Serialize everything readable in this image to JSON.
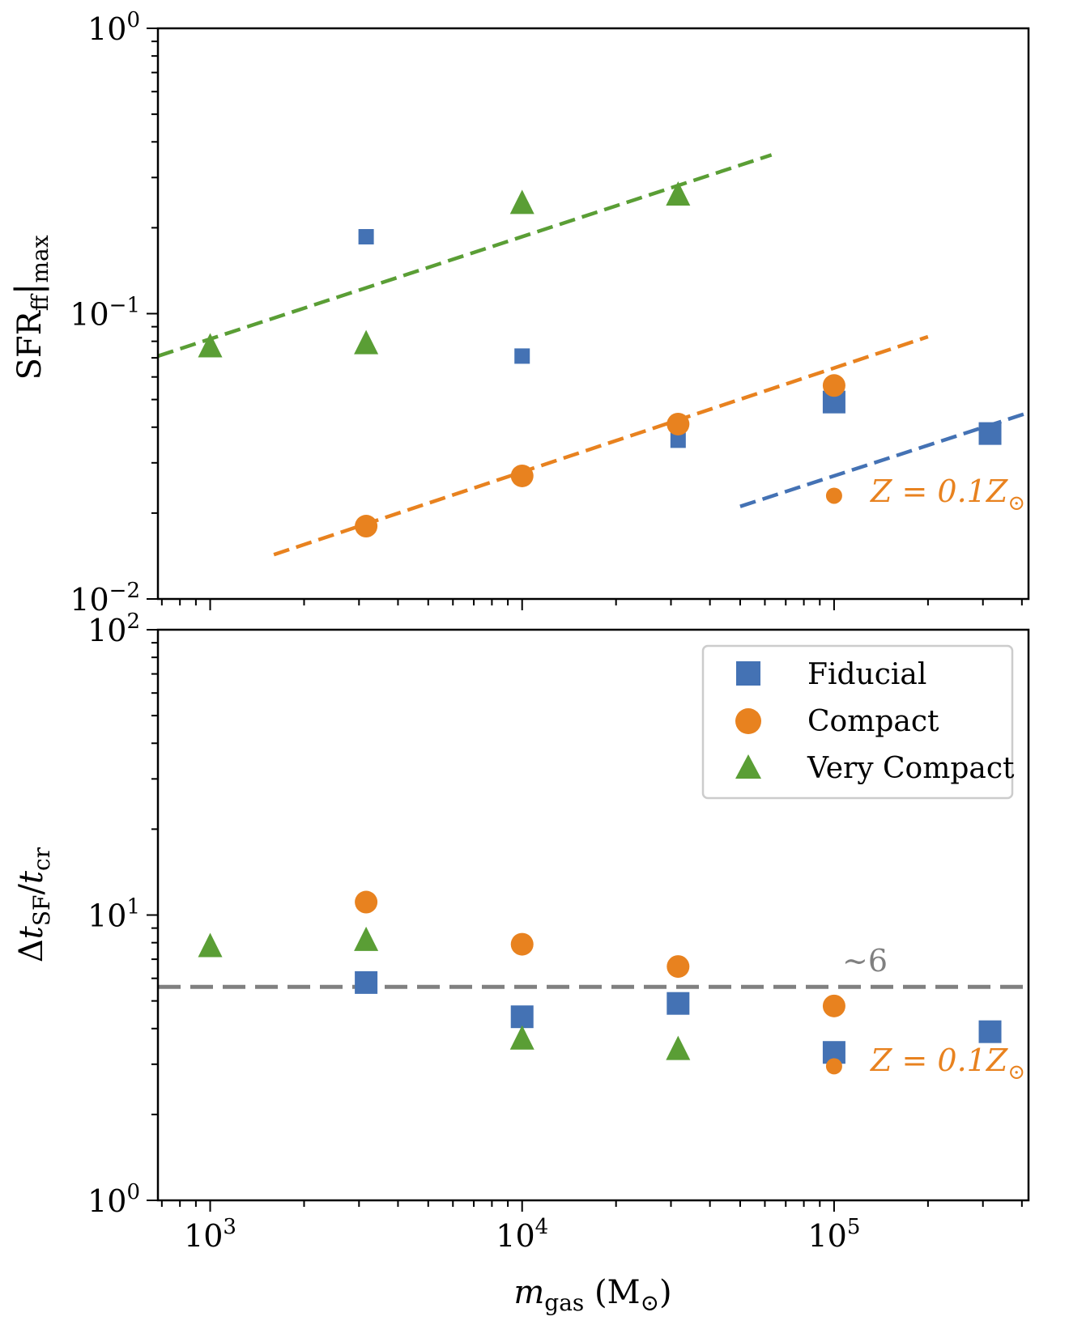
{
  "colors": {
    "fiducial": "#4472b4",
    "compact": "#e8821f",
    "very_compact": "#5a9e35",
    "reference": "#808080",
    "axes": "#000000"
  },
  "chart_data": [
    {
      "type": "scatter",
      "panel": "top",
      "xscale": "log",
      "yscale": "log",
      "xlim": [
        680,
        420000
      ],
      "ylim": [
        0.01,
        1
      ],
      "xlabel": "m_gas (M⊙)",
      "ylabel": "SFR_ff|max",
      "ylabel_text": {
        "main": "SFR",
        "sub1": "ff",
        "bar": "|",
        "sub2": "max"
      },
      "yticks": [
        {
          "value": 0.01,
          "base": "10",
          "exp": "−2"
        },
        {
          "value": 0.1,
          "base": "10",
          "exp": "−1"
        },
        {
          "value": 1,
          "base": "10",
          "exp": "0"
        }
      ],
      "series": [
        {
          "name": "Fiducial",
          "marker": "square",
          "color_key": "fiducial",
          "points": [
            {
              "x": 3162,
              "y": 0.186,
              "size": "small"
            },
            {
              "x": 10000,
              "y": 0.071,
              "size": "small"
            },
            {
              "x": 31623,
              "y": 0.036,
              "size": "small"
            },
            {
              "x": 100000,
              "y": 0.049,
              "size": "large"
            },
            {
              "x": 316228,
              "y": 0.038,
              "size": "large"
            }
          ]
        },
        {
          "name": "Compact",
          "marker": "circle",
          "color_key": "compact",
          "points": [
            {
              "x": 3162,
              "y": 0.018,
              "size": "large"
            },
            {
              "x": 10000,
              "y": 0.027,
              "size": "large"
            },
            {
              "x": 31623,
              "y": 0.041,
              "size": "large"
            },
            {
              "x": 100000,
              "y": 0.056,
              "size": "large"
            },
            {
              "x": 100000,
              "y": 0.023,
              "size": "small"
            }
          ]
        },
        {
          "name": "Very Compact",
          "marker": "triangle",
          "color_key": "very_compact",
          "points": [
            {
              "x": 1000,
              "y": 0.077,
              "size": "large"
            },
            {
              "x": 3162,
              "y": 0.079,
              "size": "large"
            },
            {
              "x": 10000,
              "y": 0.245,
              "size": "large"
            },
            {
              "x": 31623,
              "y": 0.262,
              "size": "large"
            }
          ]
        }
      ],
      "fit_lines": [
        {
          "color_key": "very_compact",
          "x": [
            680,
            63000
          ],
          "y": [
            0.071,
            0.36
          ]
        },
        {
          "color_key": "compact",
          "x": [
            1600,
            200000
          ],
          "y": [
            0.0143,
            0.083
          ]
        },
        {
          "color_key": "fiducial",
          "x": [
            50000,
            420000
          ],
          "y": [
            0.0211,
            0.045
          ]
        }
      ],
      "annotations": [
        {
          "text": {
            "pre": "Z = 0.1Z",
            "sub": "⊙"
          },
          "color_key": "compact",
          "anchor": "right-of-point",
          "x": 100000,
          "y": 0.023
        }
      ]
    },
    {
      "type": "scatter",
      "panel": "bottom",
      "xscale": "log",
      "yscale": "log",
      "xlim": [
        680,
        420000
      ],
      "ylim": [
        1,
        100
      ],
      "xlabel": "m_gas (M⊙)",
      "ylabel": "Δt_SF/t_cr",
      "xlabel_text": {
        "main": "m",
        "sub": "gas",
        "unit_pre": " (M",
        "unit_sub": "⊙",
        "unit_post": ")"
      },
      "ylabel_text": {
        "delta": "Δ",
        "t1": "t",
        "sub1": "SF",
        "slash": "/",
        "t2": "t",
        "sub2": "cr"
      },
      "xticks": [
        {
          "value": 1000,
          "base": "10",
          "exp": "3"
        },
        {
          "value": 10000,
          "base": "10",
          "exp": "4"
        },
        {
          "value": 100000,
          "base": "10",
          "exp": "5"
        }
      ],
      "yticks": [
        {
          "value": 1,
          "base": "10",
          "exp": "0"
        },
        {
          "value": 10,
          "base": "10",
          "exp": "1"
        },
        {
          "value": 100,
          "base": "10",
          "exp": "2"
        }
      ],
      "series": [
        {
          "name": "Fiducial",
          "marker": "square",
          "color_key": "fiducial",
          "points": [
            {
              "x": 3162,
              "y": 5.8,
              "size": "large"
            },
            {
              "x": 10000,
              "y": 4.4,
              "size": "large"
            },
            {
              "x": 31623,
              "y": 4.9,
              "size": "large"
            },
            {
              "x": 100000,
              "y": 3.3,
              "size": "large"
            },
            {
              "x": 316228,
              "y": 3.9,
              "size": "large"
            }
          ]
        },
        {
          "name": "Compact",
          "marker": "circle",
          "color_key": "compact",
          "points": [
            {
              "x": 3162,
              "y": 11.1,
              "size": "large"
            },
            {
              "x": 10000,
              "y": 7.9,
              "size": "large"
            },
            {
              "x": 31623,
              "y": 6.6,
              "size": "large"
            },
            {
              "x": 100000,
              "y": 4.8,
              "size": "large"
            },
            {
              "x": 100000,
              "y": 2.95,
              "size": "small"
            }
          ]
        },
        {
          "name": "Very Compact",
          "marker": "triangle",
          "color_key": "very_compact",
          "points": [
            {
              "x": 1000,
              "y": 7.8,
              "size": "large"
            },
            {
              "x": 3162,
              "y": 8.2,
              "size": "large"
            },
            {
              "x": 10000,
              "y": 3.7,
              "size": "large"
            },
            {
              "x": 31623,
              "y": 3.4,
              "size": "large"
            }
          ]
        }
      ],
      "reference_line": {
        "y": 5.6,
        "color_key": "reference",
        "label": "∼6"
      },
      "annotations": [
        {
          "text": {
            "pre": "Z = 0.1Z",
            "sub": "⊙"
          },
          "color_key": "compact",
          "anchor": "right-of-point",
          "x": 100000,
          "y": 2.95
        }
      ],
      "legend": {
        "placement": "top-right",
        "entries": [
          {
            "label": "Fiducial",
            "marker": "square",
            "color_key": "fiducial"
          },
          {
            "label": "Compact",
            "marker": "circle",
            "color_key": "compact"
          },
          {
            "label": "Very Compact",
            "marker": "triangle",
            "color_key": "very_compact"
          }
        ]
      }
    }
  ]
}
